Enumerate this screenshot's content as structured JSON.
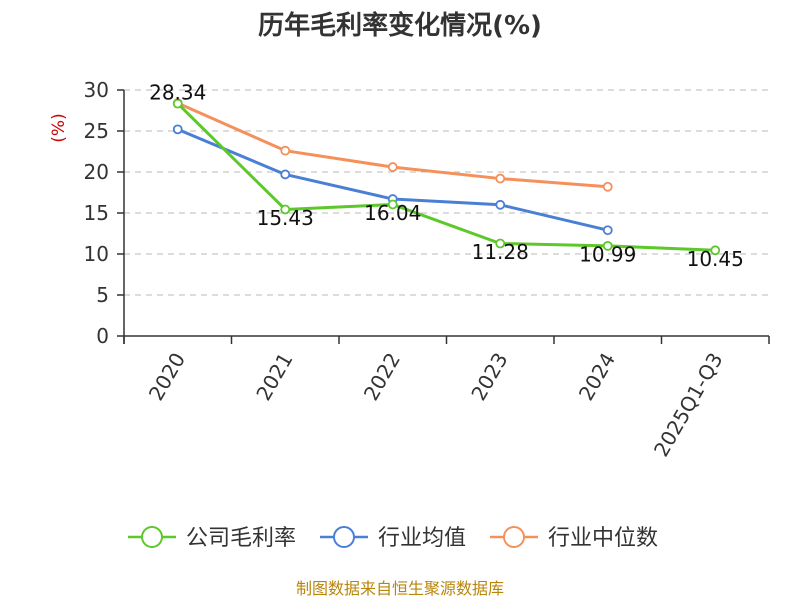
{
  "chart_data": {
    "type": "line",
    "title": "历年毛利率变化情况(%)",
    "ylabel": "(%)",
    "xlabel": "",
    "ylim": [
      0,
      30
    ],
    "yticks": [
      0,
      5,
      10,
      15,
      20,
      25,
      30
    ],
    "grid": true,
    "categories": [
      "2020",
      "2021",
      "2022",
      "2023",
      "2024",
      "2025Q1-Q3"
    ],
    "series": [
      {
        "name": "公司毛利率",
        "color": "#5cc82a",
        "values": [
          28.34,
          15.43,
          16.04,
          11.28,
          10.99,
          10.45
        ],
        "show_labels": true
      },
      {
        "name": "行业均值",
        "color": "#4a7fd6",
        "values": [
          25.2,
          19.7,
          16.7,
          16.0,
          12.9,
          null
        ],
        "show_labels": false
      },
      {
        "name": "行业中位数",
        "color": "#f5905a",
        "values": [
          28.4,
          22.6,
          20.6,
          19.2,
          18.2,
          null
        ],
        "show_labels": false
      }
    ],
    "legend_position": "bottom",
    "source": "制图数据来自恒生聚源数据库"
  }
}
